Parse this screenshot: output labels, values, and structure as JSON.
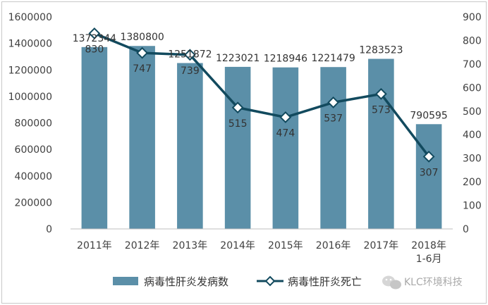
{
  "chart_data": {
    "type": "bar+line",
    "categories": [
      "2011年",
      "2012年",
      "2013年",
      "2014年",
      "2015年",
      "2016年",
      "2017年",
      "2018年\n1-6月"
    ],
    "series": [
      {
        "name": "病毒性肝炎发病数",
        "type": "bar",
        "axis": "left",
        "color": "#5b8fa8",
        "values": [
          1372344,
          1380800,
          1251872,
          1223021,
          1218946,
          1221479,
          1283523,
          790595
        ],
        "labels": [
          "1372344",
          "1380800",
          "1251872",
          "1223021",
          "1218946",
          "1221479",
          "1283523",
          "790595"
        ]
      },
      {
        "name": "病毒性肝炎死亡",
        "type": "line",
        "axis": "right",
        "color": "#124a5e",
        "marker": "diamond",
        "values": [
          830,
          747,
          739,
          515,
          474,
          537,
          573,
          307
        ],
        "labels": [
          "830",
          "747",
          "739",
          "515",
          "474",
          "537",
          "573",
          "307"
        ]
      }
    ],
    "y_left": {
      "min": 0,
      "max": 1600000,
      "step": 200000,
      "ticks": [
        "0",
        "200000",
        "400000",
        "600000",
        "800000",
        "1000000",
        "1200000",
        "1400000",
        "1600000"
      ]
    },
    "y_right": {
      "min": 0,
      "max": 900,
      "step": 100,
      "ticks": [
        "0",
        "100",
        "200",
        "300",
        "400",
        "500",
        "600",
        "700",
        "800",
        "900"
      ]
    },
    "legend": {
      "position": "bottom"
    },
    "grid": false
  },
  "watermark": {
    "text": "KLC环境科技",
    "icon": "wechat-icon"
  }
}
